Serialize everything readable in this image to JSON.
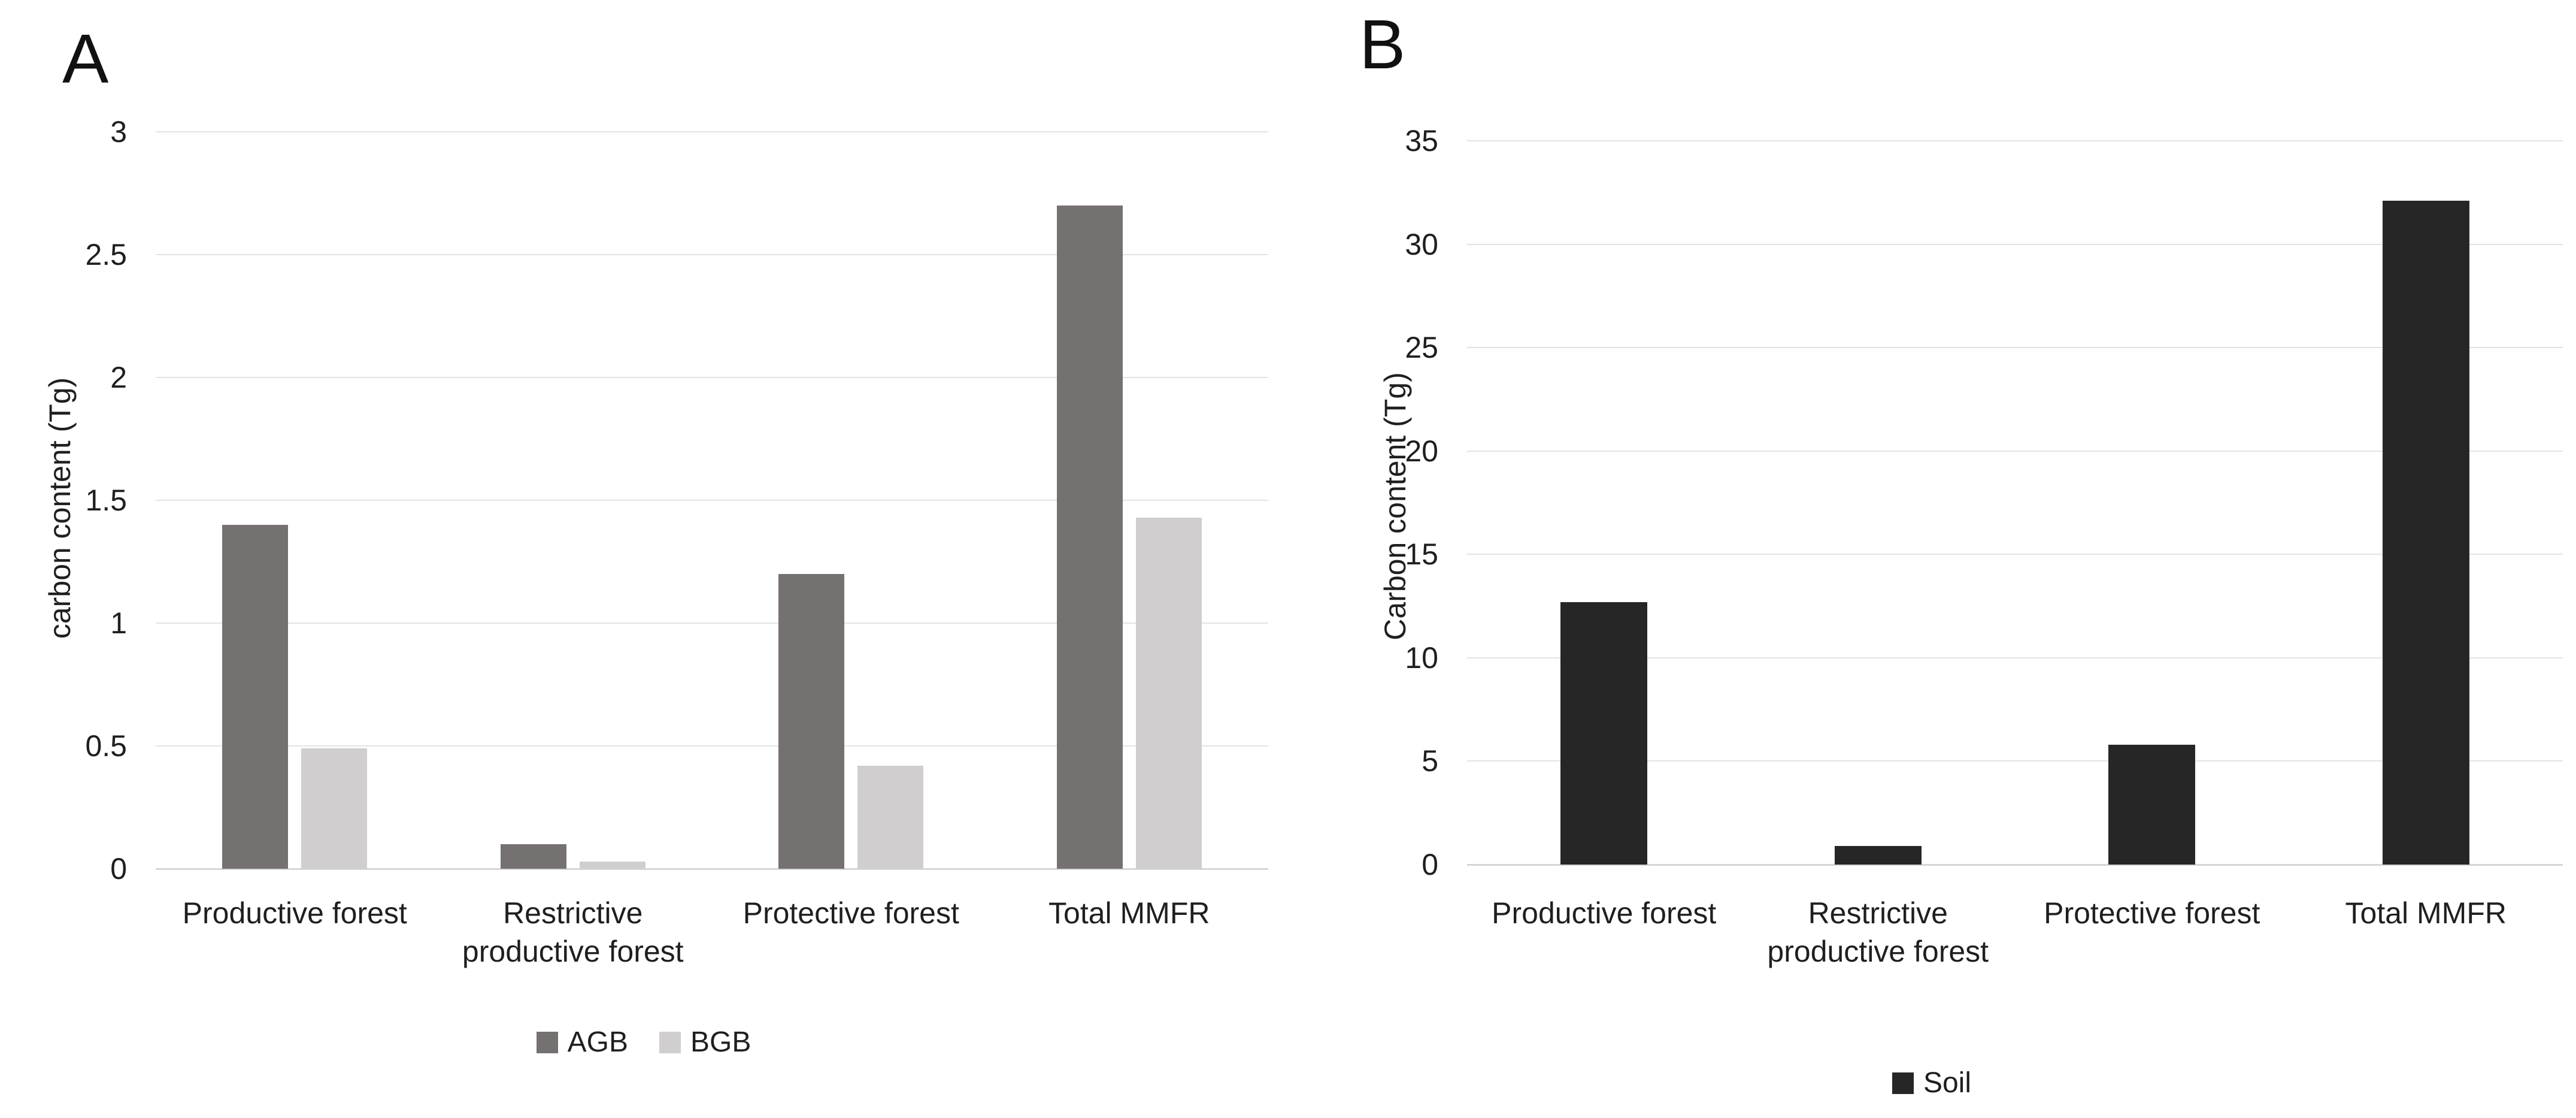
{
  "figure": {
    "background": "#ffffff",
    "text_color": "#1f1f1f"
  },
  "chart_data": [
    {
      "type": "bar",
      "panel_label": "A",
      "ylabel": "carbon content (Tg)",
      "xlabel": "",
      "categories": [
        "Productive forest",
        "Restrictive\nproductive forest",
        "Protective forest",
        "Total MMFR"
      ],
      "series": [
        {
          "name": "AGB",
          "color": "#767171",
          "values": [
            1.4,
            0.1,
            1.2,
            2.7
          ]
        },
        {
          "name": "BGB",
          "color": "#d0cece",
          "values": [
            0.49,
            0.03,
            0.42,
            1.43
          ]
        }
      ],
      "ylim": [
        0,
        3
      ],
      "yticks": [
        0,
        0.5,
        1,
        1.5,
        2,
        2.5,
        3
      ],
      "grid": true,
      "grid_color": "#e3e3e3",
      "axis_color": "#d6d6d6",
      "legend_position": "bottom"
    },
    {
      "type": "bar",
      "panel_label": "B",
      "ylabel": "Carbon content (Tg)",
      "xlabel": "",
      "categories": [
        "Productive forest",
        "Restrictive\nproductive forest",
        "Protective forest",
        "Total MMFR"
      ],
      "series": [
        {
          "name": "Soil",
          "color": "#262626",
          "values": [
            12.7,
            0.9,
            5.8,
            32.1
          ]
        }
      ],
      "ylim": [
        0,
        35
      ],
      "yticks": [
        0,
        5,
        10,
        15,
        20,
        25,
        30,
        35
      ],
      "grid": true,
      "grid_color": "#e3e3e3",
      "axis_color": "#d6d6d6",
      "legend_position": "bottom"
    }
  ]
}
